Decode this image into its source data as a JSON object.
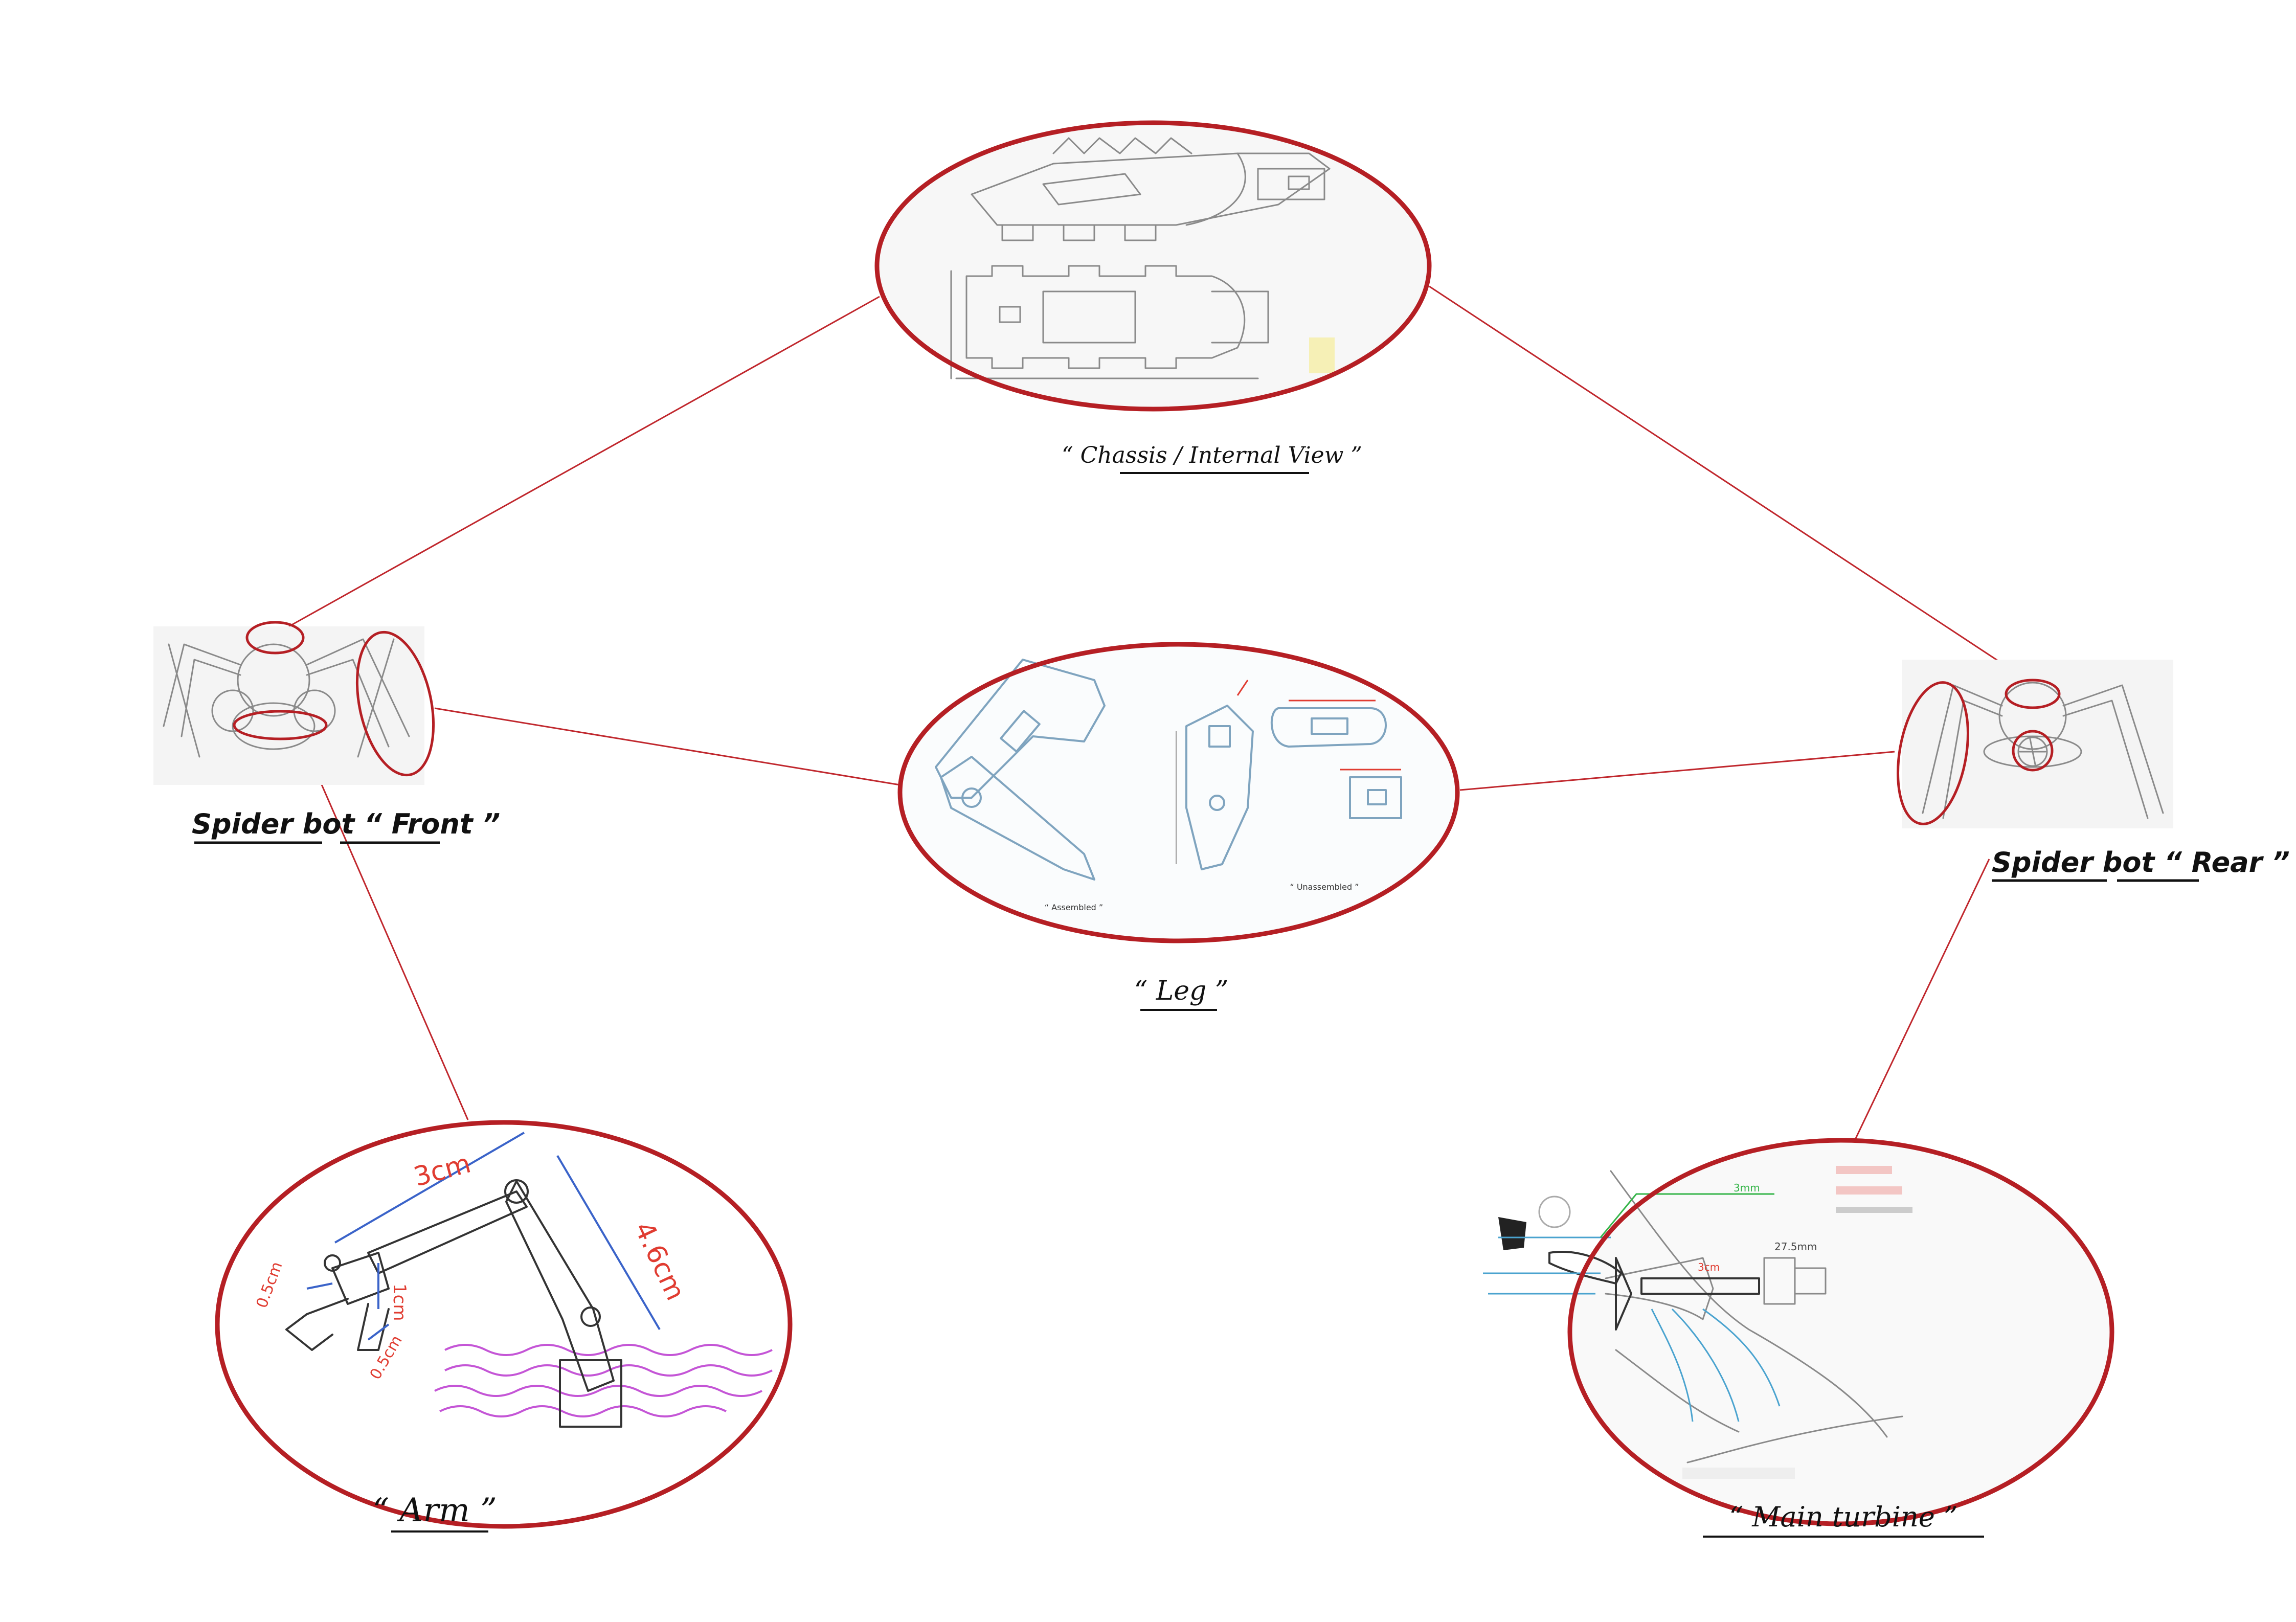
{
  "colors": {
    "connector": "#c0272d",
    "highlight_ring": "#b51f24",
    "dimension_red": "#e03c31",
    "dimension_blue": "#3a63c9",
    "water_purple": "#c455d6",
    "flow_blue": "#4aa3cf",
    "flow_green": "#36b54a",
    "sketch_gray": "#8a8a8a"
  },
  "nodes": {
    "chassis": {
      "caption": "“ Chassis / Internal View ”"
    },
    "leg": {
      "caption": "“ Leg ”",
      "label_assembled": "“ Assembled ”",
      "label_unassembled": "“ Unassembled ”"
    },
    "front": {
      "caption": "Spider bot “ Front ”"
    },
    "rear": {
      "caption": "Spider bot “ Rear ”"
    },
    "arm": {
      "caption": "“ Arm ”",
      "dim_top": "3cm",
      "dim_right": "4.6cm",
      "dim_small_left": "0.5cm",
      "dim_vertical": "1cm",
      "dim_small_bottom": "0.5cm"
    },
    "turbine": {
      "caption": "“ Main turbine ”",
      "label_width": "3cm",
      "label_motor": "27.5mm",
      "label_flow": "3mm"
    }
  }
}
